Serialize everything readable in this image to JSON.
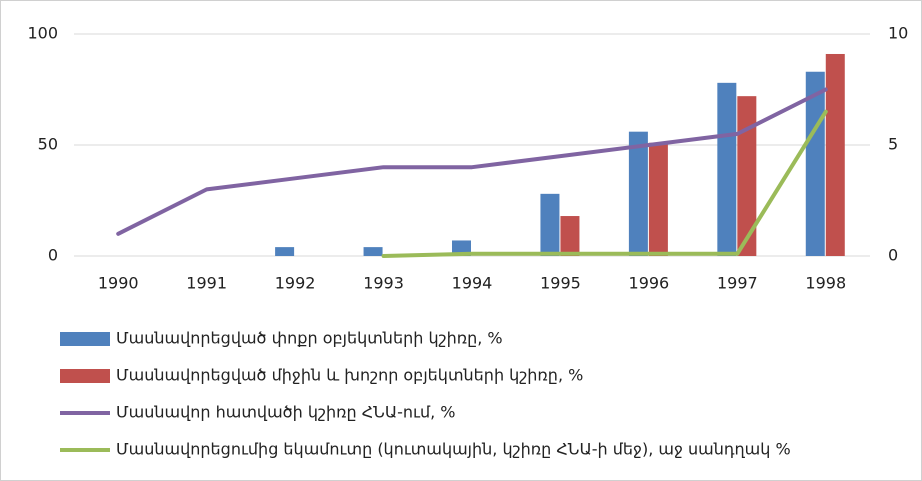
{
  "chart_data": {
    "type": "bar",
    "categories": [
      "1990",
      "1991",
      "1992",
      "1993",
      "1994",
      "1995",
      "1996",
      "1997",
      "1998"
    ],
    "series": [
      {
        "name": "Մասնավորեցված փոքր օբյեկտների կշիռը, %",
        "type": "bar",
        "color": "#4f81bd",
        "values": [
          null,
          null,
          4,
          4,
          7,
          28,
          56,
          78,
          83
        ]
      },
      {
        "name": "Մասնավորեցված միջին և խոշոր օբյեկտների կշիռը, %",
        "type": "bar",
        "color": "#c0504d",
        "values": [
          null,
          null,
          null,
          null,
          null,
          18,
          51,
          72,
          91
        ]
      },
      {
        "name": "Մասնավոր հատվածի կշիռը ՀՆԱ-ում, %",
        "type": "line",
        "color": "#8064a2",
        "values": [
          10,
          30,
          35,
          40,
          40,
          45,
          50,
          55,
          75
        ]
      },
      {
        "name": "Մասնավորեցումից եկամուտը (կուտակային, կշիռը ՀՆԱ-ի մեջ), աջ սանդղակ %",
        "type": "line",
        "color": "#9bbb59",
        "axis": "y2",
        "values": [
          null,
          null,
          null,
          0,
          0.1,
          0.1,
          0.1,
          0.1,
          6.5
        ]
      }
    ],
    "ylim": [
      0,
      100
    ],
    "yticks": [
      0,
      50,
      100
    ],
    "y2lim": [
      0,
      10
    ],
    "y2ticks": [
      0,
      5,
      10
    ],
    "grid": true,
    "legend": "bottom"
  }
}
